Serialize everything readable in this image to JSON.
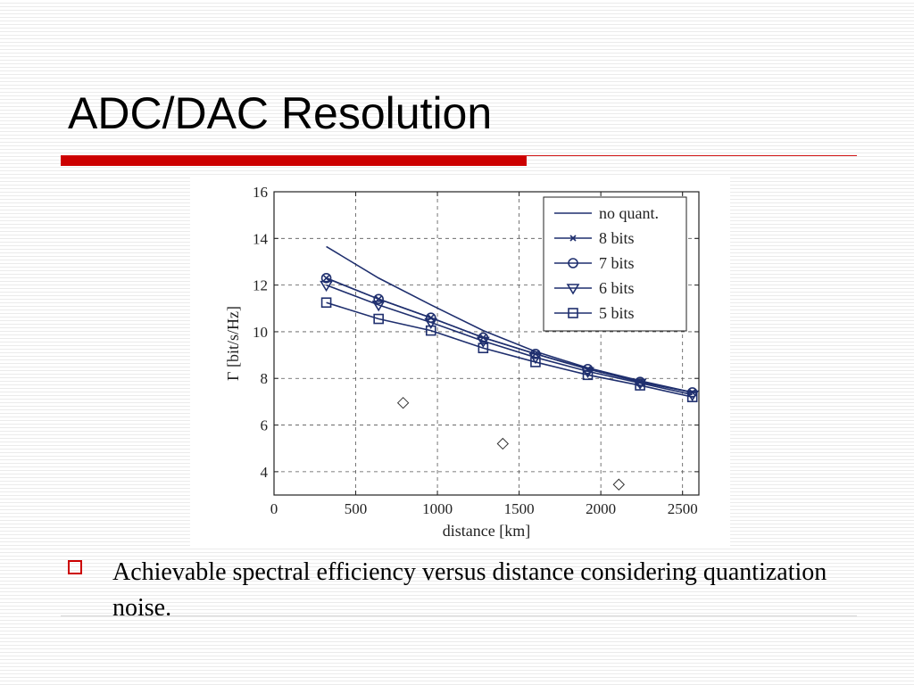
{
  "slide": {
    "title": "ADC/DAC Resolution",
    "caption": "Achievable spectral efficiency versus distance considering quantization noise.",
    "accent_color": "#cc0000"
  },
  "chart_data": {
    "type": "line",
    "xlabel": "distance [km]",
    "ylabel": "Γ [bit/s/Hz]",
    "xlim": [
      0,
      2600
    ],
    "ylim": [
      3,
      16
    ],
    "x_ticks": [
      0,
      500,
      1000,
      1500,
      2000,
      2500
    ],
    "y_ticks": [
      4,
      6,
      8,
      10,
      12,
      14,
      16
    ],
    "grid": true,
    "legend_position": "top-right",
    "line_color": "#1f2f6e",
    "series": [
      {
        "name": "no quant.",
        "marker": "none",
        "points": [
          [
            320,
            13.65
          ],
          [
            640,
            12.3
          ],
          [
            960,
            11.15
          ],
          [
            1280,
            10.05
          ],
          [
            1600,
            9.15
          ],
          [
            1920,
            8.45
          ],
          [
            2240,
            7.9
          ],
          [
            2560,
            7.4
          ]
        ]
      },
      {
        "name": "8 bits",
        "marker": "x",
        "points": [
          [
            320,
            12.3
          ],
          [
            640,
            11.4
          ],
          [
            960,
            10.6
          ],
          [
            1280,
            9.75
          ],
          [
            1600,
            9.05
          ],
          [
            1920,
            8.4
          ],
          [
            2240,
            7.85
          ],
          [
            2560,
            7.4
          ]
        ]
      },
      {
        "name": "7 bits",
        "marker": "circle",
        "points": [
          [
            320,
            12.3
          ],
          [
            640,
            11.4
          ],
          [
            960,
            10.6
          ],
          [
            1280,
            9.75
          ],
          [
            1600,
            9.05
          ],
          [
            1920,
            8.4
          ],
          [
            2240,
            7.85
          ],
          [
            2560,
            7.4
          ]
        ]
      },
      {
        "name": "6 bits",
        "marker": "triangle-down",
        "points": [
          [
            320,
            12.0
          ],
          [
            640,
            11.15
          ],
          [
            960,
            10.4
          ],
          [
            1280,
            9.6
          ],
          [
            1600,
            8.9
          ],
          [
            1920,
            8.3
          ],
          [
            2240,
            7.8
          ],
          [
            2560,
            7.3
          ]
        ]
      },
      {
        "name": "5 bits",
        "marker": "square",
        "points": [
          [
            320,
            11.25
          ],
          [
            640,
            10.55
          ],
          [
            960,
            10.05
          ],
          [
            1280,
            9.3
          ],
          [
            1600,
            8.7
          ],
          [
            1920,
            8.15
          ],
          [
            2240,
            7.7
          ],
          [
            2560,
            7.2
          ]
        ]
      }
    ],
    "scatter_points": {
      "marker": "diamond",
      "points": [
        [
          790,
          6.95
        ],
        [
          1400,
          5.2
        ],
        [
          2110,
          3.45
        ]
      ]
    }
  }
}
